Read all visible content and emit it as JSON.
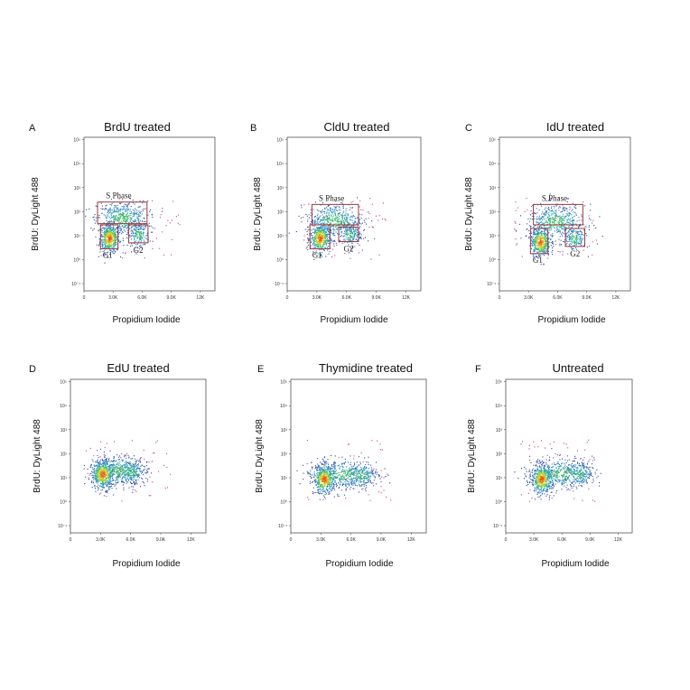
{
  "chart_data": [
    {
      "type": "scatter",
      "letter": "A",
      "title": "BrdU treated",
      "xlabel": "Propidium Iodide",
      "ylabel": "BrdU: DyLight 488",
      "x_ticks": [
        "0",
        "3.0K",
        "6.0K",
        "9.0K",
        "12K"
      ],
      "y_ticks": [
        "10⁵",
        "10⁴",
        "10³",
        "10²",
        "10¹",
        "10⁰",
        "10⁻¹"
      ],
      "xlim": [
        0,
        13500
      ],
      "ylog_range": [
        -1.3,
        5.1
      ],
      "gates": [
        {
          "label": "S Phase",
          "x": [
            1400,
            6500
          ],
          "ylog": [
            1.5,
            2.4
          ]
        },
        {
          "label": "G1",
          "x": [
            1700,
            3500
          ],
          "ylog": [
            0.45,
            1.45
          ]
        },
        {
          "label": "G2",
          "x": [
            4600,
            6600
          ],
          "ylog": [
            0.7,
            1.45
          ]
        }
      ],
      "populations": [
        {
          "name": "G1",
          "x": 2600,
          "ylog": 0.9,
          "sx": 500,
          "sy": 0.3,
          "frac": 0.42
        },
        {
          "name": "S",
          "x": 3900,
          "ylog": 1.75,
          "sx": 1300,
          "sy": 0.35,
          "frac": 0.43
        },
        {
          "name": "G2",
          "x": 5600,
          "ylog": 1.05,
          "sx": 550,
          "sy": 0.25,
          "frac": 0.15
        }
      ]
    },
    {
      "type": "scatter",
      "letter": "B",
      "title": "CldU treated",
      "xlabel": "Propidium Iodide",
      "ylabel": "BrdU: DyLight 488",
      "x_ticks": [
        "0",
        "3.0K",
        "6.0K",
        "9.0K",
        "12K"
      ],
      "y_ticks": [
        "10⁵",
        "10⁴",
        "10³",
        "10²",
        "10¹",
        "10⁰",
        "10⁻¹"
      ],
      "xlim": [
        0,
        13500
      ],
      "ylog_range": [
        -1.3,
        5.1
      ],
      "gates": [
        {
          "label": "S Phase",
          "x": [
            2500,
            7200
          ],
          "ylog": [
            1.45,
            2.3
          ]
        },
        {
          "label": "G1",
          "x": [
            2300,
            4300
          ],
          "ylog": [
            0.45,
            1.45
          ]
        },
        {
          "label": "G2",
          "x": [
            5200,
            7200
          ],
          "ylog": [
            0.75,
            1.35
          ]
        }
      ],
      "populations": [
        {
          "name": "G1",
          "x": 3300,
          "ylog": 0.9,
          "sx": 500,
          "sy": 0.3,
          "frac": 0.42
        },
        {
          "name": "S",
          "x": 4800,
          "ylog": 1.65,
          "sx": 1400,
          "sy": 0.35,
          "frac": 0.43
        },
        {
          "name": "G2",
          "x": 6300,
          "ylog": 1.05,
          "sx": 550,
          "sy": 0.25,
          "frac": 0.15
        }
      ]
    },
    {
      "type": "scatter",
      "letter": "C",
      "title": "IdU treated",
      "xlabel": "Propidium Iodide",
      "ylabel": "BrdU: DyLight 488",
      "x_ticks": [
        "0",
        "3.0K",
        "6.0K",
        "9.0K",
        "12K"
      ],
      "y_ticks": [
        "10⁵",
        "10⁴",
        "10³",
        "10²",
        "10¹",
        "10⁰",
        "10⁻¹"
      ],
      "xlim": [
        0,
        13500
      ],
      "ylog_range": [
        -1.3,
        5.1
      ],
      "gates": [
        {
          "label": "S Phase",
          "x": [
            3500,
            8600
          ],
          "ylog": [
            1.45,
            2.3
          ]
        },
        {
          "label": "G1",
          "x": [
            3200,
            5000
          ],
          "ylog": [
            0.25,
            1.3
          ]
        },
        {
          "label": "G2",
          "x": [
            6800,
            8800
          ],
          "ylog": [
            0.55,
            1.3
          ]
        }
      ],
      "populations": [
        {
          "name": "G1",
          "x": 4200,
          "ylog": 0.75,
          "sx": 500,
          "sy": 0.3,
          "frac": 0.42
        },
        {
          "name": "S",
          "x": 5800,
          "ylog": 1.6,
          "sx": 1500,
          "sy": 0.35,
          "frac": 0.43
        },
        {
          "name": "G2",
          "x": 7700,
          "ylog": 0.9,
          "sx": 550,
          "sy": 0.25,
          "frac": 0.15
        }
      ]
    },
    {
      "type": "scatter",
      "letter": "D",
      "title": "EdU treated",
      "xlabel": "Propidium Iodide",
      "ylabel": "BrdU: DyLight 488",
      "x_ticks": [
        "0",
        "3.0K",
        "6.0K",
        "9.0K",
        "12K"
      ],
      "y_ticks": [
        "10⁵",
        "10⁴",
        "10³",
        "10²",
        "10¹",
        "10⁰",
        "10⁻¹"
      ],
      "xlim": [
        0,
        13500
      ],
      "ylog_range": [
        -1.3,
        5.1
      ],
      "gates": [],
      "populations": [
        {
          "name": "G1",
          "x": 3200,
          "ylog": 1.15,
          "sx": 550,
          "sy": 0.3,
          "frac": 0.45
        },
        {
          "name": "S",
          "x": 4700,
          "ylog": 1.3,
          "sx": 1400,
          "sy": 0.3,
          "frac": 0.4
        },
        {
          "name": "G2",
          "x": 6100,
          "ylog": 1.25,
          "sx": 600,
          "sy": 0.25,
          "frac": 0.15
        }
      ]
    },
    {
      "type": "scatter",
      "letter": "E",
      "title": "Thymidine treated",
      "xlabel": "Propidium Iodide",
      "ylabel": "BrdU: DyLight 488",
      "x_ticks": [
        "0",
        "3.0K",
        "6.0K",
        "9.0K",
        "12K"
      ],
      "y_ticks": [
        "10⁵",
        "10⁴",
        "10³",
        "10²",
        "10¹",
        "10⁰",
        "10⁻¹"
      ],
      "xlim": [
        0,
        13500
      ],
      "ylog_range": [
        -1.3,
        5.1
      ],
      "gates": [],
      "populations": [
        {
          "name": "G1",
          "x": 3300,
          "ylog": 0.95,
          "sx": 550,
          "sy": 0.3,
          "frac": 0.45
        },
        {
          "name": "S",
          "x": 5200,
          "ylog": 1.15,
          "sx": 1700,
          "sy": 0.3,
          "frac": 0.4
        },
        {
          "name": "G2",
          "x": 7000,
          "ylog": 1.1,
          "sx": 700,
          "sy": 0.25,
          "frac": 0.15
        }
      ]
    },
    {
      "type": "scatter",
      "letter": "F",
      "title": "Untreated",
      "xlabel": "Propidium Iodide",
      "ylabel": "BrdU: DyLight 488",
      "x_ticks": [
        "0",
        "3.0K",
        "6.0K",
        "9.0K",
        "12K"
      ],
      "y_ticks": [
        "10⁵",
        "10⁴",
        "10³",
        "10²",
        "10¹",
        "10⁰",
        "10⁻¹"
      ],
      "xlim": [
        0,
        13500
      ],
      "ylog_range": [
        -1.3,
        5.1
      ],
      "gates": [],
      "populations": [
        {
          "name": "G1",
          "x": 3800,
          "ylog": 0.95,
          "sx": 550,
          "sy": 0.3,
          "frac": 0.45
        },
        {
          "name": "S",
          "x": 5900,
          "ylog": 1.2,
          "sx": 1700,
          "sy": 0.3,
          "frac": 0.4
        },
        {
          "name": "G2",
          "x": 7800,
          "ylog": 1.15,
          "sx": 700,
          "sy": 0.25,
          "frac": 0.15
        }
      ]
    }
  ],
  "colors": {
    "frame": "#555555",
    "gate": "#9b3a3a",
    "density_low": "#2a3fa0",
    "density_mid": "#2aa8c8",
    "density_high": "#e8e020",
    "outlier": "#c04080"
  }
}
